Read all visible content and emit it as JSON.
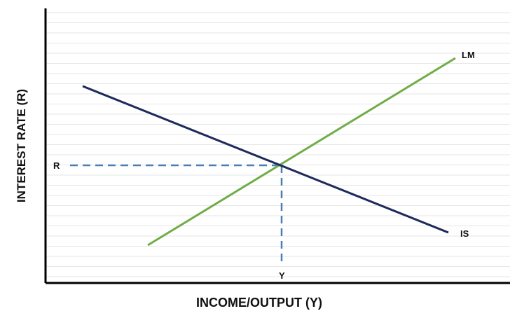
{
  "diagram": {
    "title": "",
    "x_axis_label": "INCOME/OUTPUT (Y)",
    "y_axis_label": "INTEREST RATE (R)",
    "curves": [
      {
        "name": "LM",
        "label": "LM",
        "color": "#70ad47"
      },
      {
        "name": "IS",
        "label": "IS",
        "color": "#1f2a5c"
      }
    ],
    "equilibrium": {
      "interest_label": "R",
      "output_label": "Y"
    },
    "colors": {
      "axis": "#000000",
      "grid": "#e6e6e6",
      "guide": "#4a7fb5"
    }
  }
}
